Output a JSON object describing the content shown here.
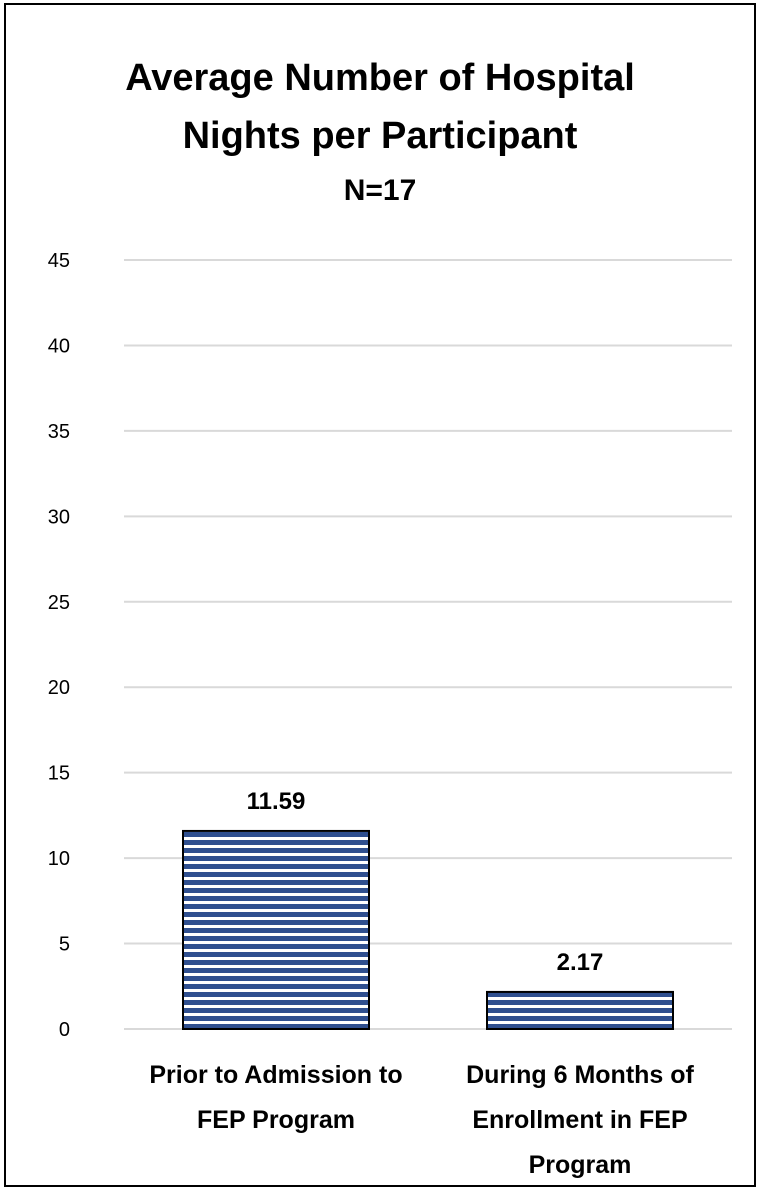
{
  "chart_data": {
    "type": "bar",
    "title": "Average Number of Hospital Nights per Participant",
    "title_lines": [
      "Average Number of Hospital",
      "Nights per Participant"
    ],
    "subtitle": "N=17",
    "xlabel": "",
    "ylabel": "",
    "categories": [
      "Prior to Admission to FEP Program",
      "During 6 Months of Enrollment in FEP Program"
    ],
    "category_lines": [
      [
        "Prior to Admission to",
        "FEP Program"
      ],
      [
        "During 6 Months of",
        "Enrollment in FEP",
        "Program"
      ]
    ],
    "values": [
      11.59,
      2.17
    ],
    "data_labels": [
      "11.59",
      "2.17"
    ],
    "ylim": [
      0,
      45
    ],
    "yticks": [
      0,
      5,
      10,
      15,
      20,
      25,
      30,
      35,
      40,
      45
    ],
    "grid": true,
    "legend": "none",
    "bar_fill": "horizontal-stripes",
    "colors": {
      "bar_stripe": "#2f4f8f",
      "bar_background": "#ffffff",
      "bar_border": "#000000",
      "gridline": "#d9d9d9",
      "frame": "#000000"
    }
  }
}
